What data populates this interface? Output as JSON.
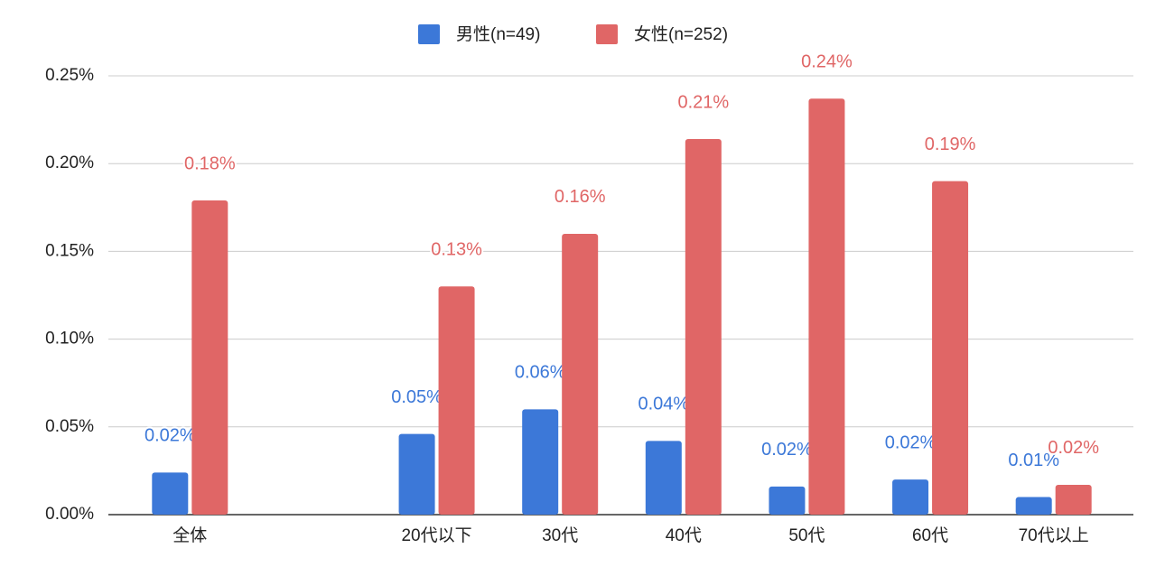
{
  "chart_data": {
    "type": "bar",
    "categories": [
      "全体",
      null,
      "20代以下",
      "30代",
      "40代",
      "50代",
      "60代",
      "70代以上"
    ],
    "series": [
      {
        "name": "男性(n=49)",
        "color": "#3c78d8",
        "values": [
          0.024,
          null,
          0.046,
          0.06,
          0.042,
          0.016,
          0.02,
          0.01
        ],
        "value_labels": [
          "0.02%",
          null,
          "0.05%",
          "0.06%",
          "0.04%",
          "0.02%",
          "0.02%",
          "0.01%"
        ]
      },
      {
        "name": "女性(n=252)",
        "color": "#e06666",
        "values": [
          0.179,
          null,
          0.13,
          0.16,
          0.214,
          0.237,
          0.19,
          0.017
        ],
        "value_labels": [
          "0.18%",
          null,
          "0.13%",
          "0.16%",
          "0.21%",
          "0.24%",
          "0.19%",
          "0.02%"
        ]
      }
    ],
    "ylim": [
      0,
      0.25
    ],
    "yticks": [
      {
        "value": 0,
        "label": "0.00%"
      },
      {
        "value": 0.05,
        "label": "0.05%"
      },
      {
        "value": 0.1,
        "label": "0.10%"
      },
      {
        "value": 0.15,
        "label": "0.15%"
      },
      {
        "value": 0.2,
        "label": "0.20%"
      },
      {
        "value": 0.25,
        "label": "0.25%"
      }
    ],
    "grid": true,
    "legend": "top"
  }
}
